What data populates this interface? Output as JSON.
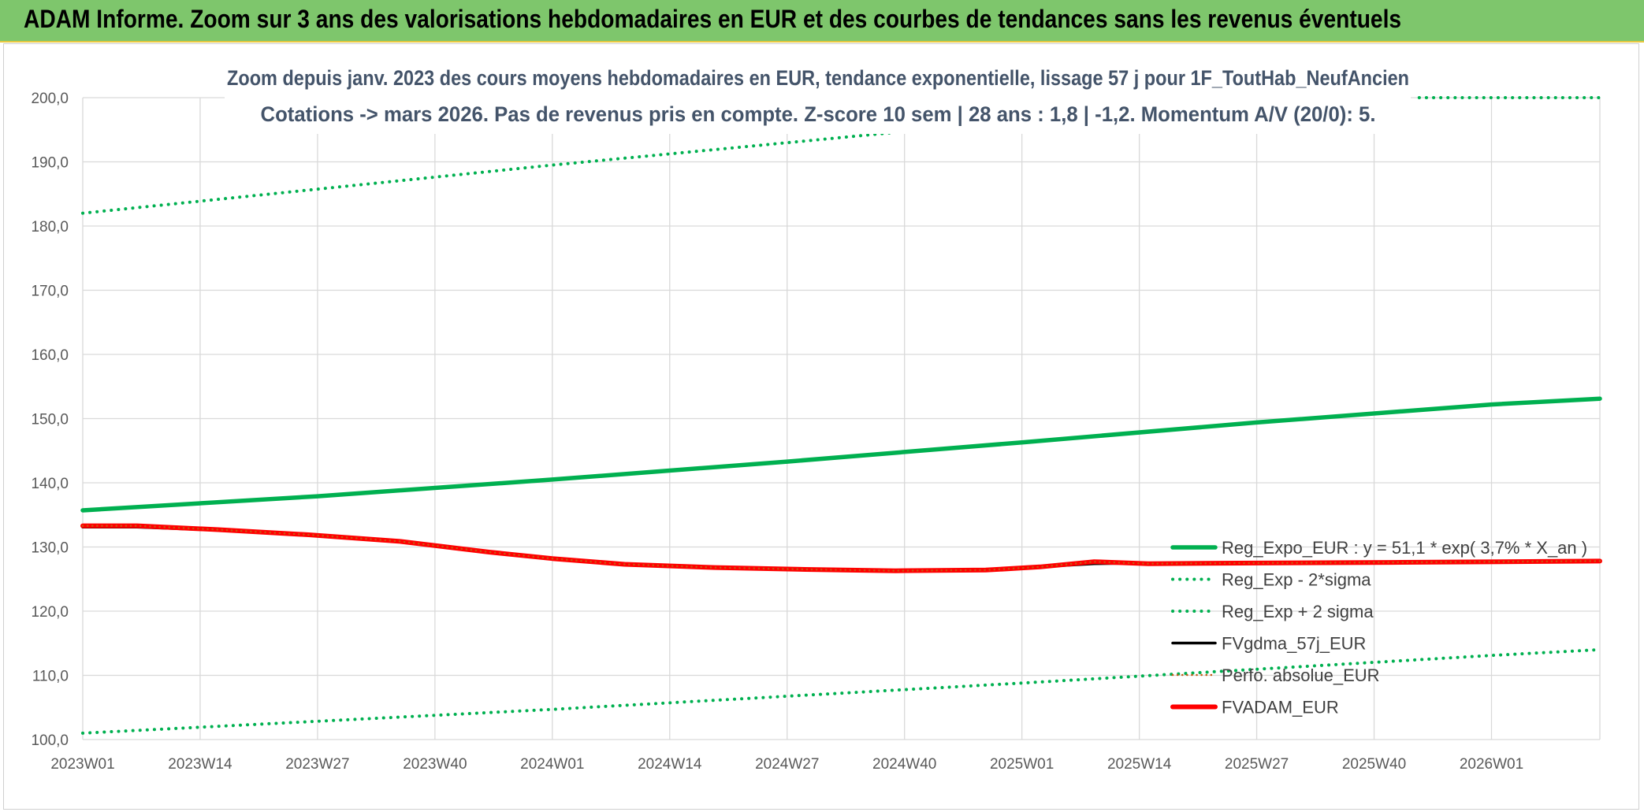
{
  "header": {
    "title": "ADAM Informe. Zoom sur 3 ans des valorisations hebdomadaires en EUR et des courbes de tendances sans les revenus éventuels"
  },
  "chart_data": {
    "type": "line",
    "subtitle_line1": "Zoom depuis janv. 2023 des cours moyens hebdomadaires en EUR, tendance exponentielle, lissage 57 j pour 1F_ToutHab_NeufAncien",
    "subtitle_line2": "Cotations -> mars 2026. Pas de revenus pris en compte. Z-score 10 sem | 28 ans : 1,8 | -1,2. Momentum A/V (20/0): 5.",
    "x_tick_labels": [
      "2023W01",
      "2023W14",
      "2023W27",
      "2023W40",
      "2024W01",
      "2024W14",
      "2024W27",
      "2024W40",
      "2025W01",
      "2025W14",
      "2025W27",
      "2025W40",
      "2026W01"
    ],
    "x_range_weeks": [
      0,
      168
    ],
    "ylim": [
      100,
      200
    ],
    "y_ticks": [
      "100,0",
      "110,0",
      "120,0",
      "130,0",
      "140,0",
      "150,0",
      "160,0",
      "170,0",
      "180,0",
      "190,0",
      "200,0"
    ],
    "grid": true,
    "legend_position": "right",
    "series": [
      {
        "name": "Reg_Expo_EUR : y = 51,1 * exp( 3,7% *  X_an )",
        "color": "#00b050",
        "style": "solid-thick",
        "points": [
          [
            0,
            135.7
          ],
          [
            26,
            137.9
          ],
          [
            52,
            140.5
          ],
          [
            78,
            143.3
          ],
          [
            104,
            146.3
          ],
          [
            130,
            149.4
          ],
          [
            156,
            152.2
          ],
          [
            168,
            153.1
          ]
        ]
      },
      {
        "name": "Reg_Exp - 2*sigma",
        "color": "#00b050",
        "style": "dotted",
        "points": [
          [
            0,
            101.0
          ],
          [
            52,
            104.7
          ],
          [
            104,
            108.8
          ],
          [
            156,
            113.1
          ],
          [
            168,
            114.0
          ]
        ]
      },
      {
        "name": "Reg_Exp + 2 sigma",
        "color": "#00b050",
        "style": "dotted",
        "points": [
          [
            0,
            182.0
          ],
          [
            52,
            189.5
          ],
          [
            93,
            195.0
          ]
        ],
        "points_clipped": [
          [
            148,
            200.0
          ],
          [
            168,
            200.0
          ]
        ]
      },
      {
        "name": "FVgdma_57j_EUR",
        "color": "#000000",
        "style": "solid",
        "points": [
          [
            0,
            133.1
          ],
          [
            6,
            133.1
          ],
          [
            15,
            132.6
          ],
          [
            25,
            131.8
          ],
          [
            35,
            130.8
          ],
          [
            45,
            129.1
          ],
          [
            52,
            128.1
          ],
          [
            60,
            127.3
          ],
          [
            70,
            126.8
          ],
          [
            80,
            126.5
          ],
          [
            90,
            126.3
          ],
          [
            100,
            126.4
          ],
          [
            106,
            126.9
          ],
          [
            112,
            127.4
          ],
          [
            118,
            127.5
          ],
          [
            130,
            127.5
          ],
          [
            145,
            127.6
          ],
          [
            168,
            127.9
          ]
        ]
      },
      {
        "name": "Perfo. absolue_EUR",
        "color": "#c55a11",
        "style": "dotted-thin",
        "points": [
          [
            0,
            133.3
          ],
          [
            6,
            133.3
          ],
          [
            15,
            132.7
          ],
          [
            25,
            131.9
          ],
          [
            35,
            130.9
          ],
          [
            45,
            129.2
          ],
          [
            52,
            128.2
          ],
          [
            60,
            127.3
          ],
          [
            70,
            126.8
          ],
          [
            80,
            126.5
          ],
          [
            90,
            126.3
          ],
          [
            100,
            126.4
          ],
          [
            106,
            126.9
          ],
          [
            112,
            127.7
          ],
          [
            118,
            127.4
          ],
          [
            130,
            127.5
          ],
          [
            145,
            127.6
          ],
          [
            168,
            127.8
          ]
        ]
      },
      {
        "name": "FVADAM_EUR",
        "color": "#ff0000",
        "style": "solid-thick",
        "points": [
          [
            0,
            133.3
          ],
          [
            6,
            133.3
          ],
          [
            15,
            132.7
          ],
          [
            25,
            131.9
          ],
          [
            35,
            130.9
          ],
          [
            45,
            129.2
          ],
          [
            52,
            128.2
          ],
          [
            60,
            127.3
          ],
          [
            70,
            126.8
          ],
          [
            80,
            126.5
          ],
          [
            90,
            126.3
          ],
          [
            100,
            126.4
          ],
          [
            106,
            126.9
          ],
          [
            112,
            127.7
          ],
          [
            118,
            127.4
          ],
          [
            130,
            127.5
          ],
          [
            145,
            127.6
          ],
          [
            168,
            127.8
          ]
        ]
      }
    ]
  }
}
